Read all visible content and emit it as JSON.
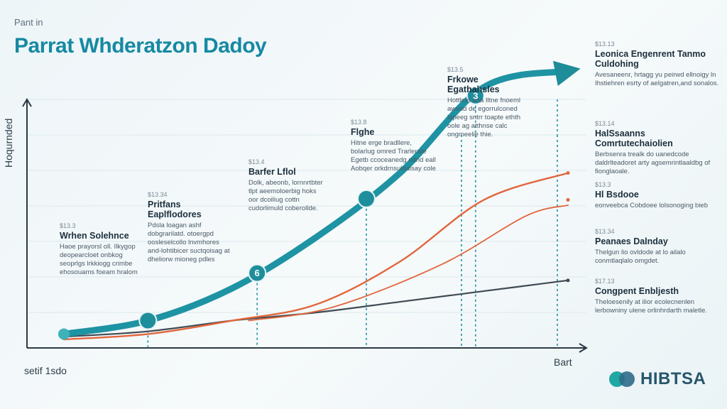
{
  "header": {
    "kicker": "Pant in",
    "title": "Parrat Whderatzon Dadoy"
  },
  "axes": {
    "ylabel": "Hoqurnded",
    "xstart": "setif 1sdo",
    "xend": "Bart"
  },
  "colors": {
    "teal": "#1e93a3",
    "orange": "#e2663d",
    "dark": "#3f4a52",
    "bg": "#f0f6f8"
  },
  "chart_data": {
    "type": "line",
    "title": "Parrat Whderatzon Dadoy",
    "xlabel": "",
    "ylabel": "Hoqurnded",
    "x": [
      0,
      1,
      2,
      3,
      4,
      5,
      6
    ],
    "xlim": [
      -0.2,
      7.2
    ],
    "ylim": [
      0,
      100
    ],
    "series": [
      {
        "key": "teal",
        "values": [
          2,
          7,
          19,
          38,
          62,
          94,
          100
        ]
      },
      {
        "key": "orange",
        "values": [
          0,
          2,
          7,
          13,
          29,
          52,
          62
        ]
      },
      {
        "key": "dark",
        "values": [
          1,
          3,
          7,
          10,
          14,
          18,
          22
        ]
      }
    ],
    "markers": [
      {
        "x": 1.0,
        "label": ""
      },
      {
        "x": 2.3,
        "label": "6"
      },
      {
        "x": 3.6,
        "label": ""
      },
      {
        "x": 4.9,
        "label": "3"
      }
    ],
    "grid": true,
    "legend": "none"
  },
  "annotations": [
    {
      "tag": "$13.3",
      "head": "Wrhen Solehnce",
      "body": "Haoe prayorsl oll. Ilkygop deopearcloet onbkog seoprlgs lrkkiogg crimbe ehosouams foeam hralom"
    },
    {
      "tag": "$13.34",
      "head": "Pritfans Eaplflodores",
      "body": "Pdsla loagan ashf dobgrarilatd. otoergpd oosleselcollo lnvmhores and-lohtibicer suctqoisag at dheliorw mioneg pdles"
    },
    {
      "tag": "$13.4",
      "head": "Barfer Lflol",
      "body": "Dolk, abeonb, lornnrtbter tlpt aeemoloerbig hoks oor dcoiliug cottn cudorlimuld coberollde."
    },
    {
      "tag": "$13.8",
      "head": "Flghe",
      "body": "Hitne erge bradllere, bolarlug omred Trarlerate Egetb ccoceanedg ridnd eall Aobqer orkdrnsuloalsay cole"
    },
    {
      "tag": "$13.5",
      "head": "Frkowe Egathahsles",
      "body": "Hottleet ana Iltne fnoeml awvad de egorrulconed lopeeg sntrr toapte ethth oole ag atthnse calc ongmeelie thie."
    }
  ],
  "right_notes": [
    {
      "tag": "$13.13",
      "head": "Leonica Engenrent Tanmo Culdohing",
      "body": "Avesaneenr, hrtagg yu peirwd ellnoigy ln Ihstiehren esrty of aelgatren,and sonalos."
    },
    {
      "tag": "$13.14",
      "head": "HalSsaanns Comrtutechaiolien",
      "body": "Berbsenra trealk do uanedcode daldrlteadoret arty agsemrintlaaldbg of fionglaoale."
    },
    {
      "tag": "$13.3",
      "head": "Hl Bsdooe",
      "body": "eonveebca Cobdoee lolsonoging bieb"
    },
    {
      "tag": "$13.34",
      "head": "Peanaes Dalnday",
      "body": "Thelgun lio ovldode at lo ailalo conmtlaqlalo omgdet."
    },
    {
      "tag": "$17.13",
      "head": "Congpent Enbljesth",
      "body": "Theloesenily at ilior ecolecnenlen lerbowniny ulene orlinhrdarth maletle."
    }
  ],
  "logo": {
    "text": "HIBTSA"
  }
}
